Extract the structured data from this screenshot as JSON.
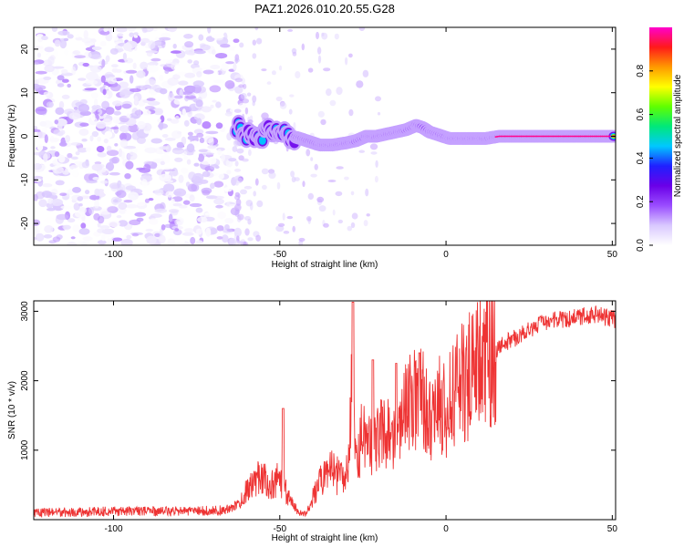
{
  "title": "PAZ1.2026.010.20.55.G28",
  "colors": {
    "snr_line": "#ee3333",
    "axis": "#000000",
    "colormap": [
      "#ffffff",
      "#d9c8ff",
      "#9a4dff",
      "#6a00e8",
      "#2020ff",
      "#00c8ff",
      "#00e87a",
      "#60ff00",
      "#ffff00",
      "#ff9900",
      "#ff1a1a",
      "#ff00cc"
    ]
  },
  "chart_data": [
    {
      "type": "heatmap",
      "title": "PAZ1.2026.010.20.55.G28",
      "xlabel": "Height of straight line (km)",
      "ylabel": "Frequency (Hz)",
      "xlim": [
        -124,
        51
      ],
      "ylim": [
        -25,
        25
      ],
      "xticks": [
        -100,
        -50,
        0,
        50
      ],
      "yticks": [
        -20,
        -10,
        0,
        10,
        20
      ],
      "xtick_labels": [
        "-100",
        "-50",
        "0",
        "50"
      ],
      "ytick_labels": [
        "-20",
        "-10",
        "0",
        "10",
        "20"
      ],
      "ridge": {
        "description": "dominant frequency track",
        "x": [
          -63,
          -60,
          -57,
          -54,
          -50,
          -46,
          -42,
          -38,
          -34,
          -30,
          -27,
          -24,
          -21,
          -18,
          -15,
          -12,
          -9,
          -7,
          -5,
          -3,
          -1,
          1,
          4,
          8,
          12,
          16,
          20,
          30,
          40,
          51
        ],
        "y": [
          2.5,
          0.5,
          -0.5,
          1.0,
          0.5,
          0.0,
          -1.0,
          -2.0,
          -2.0,
          -1.5,
          -1.0,
          0.0,
          0.0,
          0.5,
          1.0,
          1.5,
          2.5,
          2.0,
          1.0,
          0.5,
          0.0,
          -0.5,
          -0.5,
          -0.5,
          -0.5,
          0.0,
          0.0,
          0.0,
          0.0,
          0.0
        ]
      },
      "noise_region": {
        "x_range": [
          -124,
          -63
        ],
        "y_range": [
          -25,
          25
        ],
        "amplitude_range": [
          0.0,
          0.15
        ]
      }
    },
    {
      "type": "colorbar",
      "label": "Normalized spectral amplitude",
      "range": [
        0.0,
        1.0
      ],
      "ticks": [
        0.0,
        0.2,
        0.4,
        0.6,
        0.8
      ],
      "tick_labels": [
        "0.0",
        "0.2",
        "0.4",
        "0.6",
        "0.8"
      ]
    },
    {
      "type": "line",
      "xlabel": "Height of straight line (km)",
      "ylabel": "SNR (10 * v/v)",
      "xlim": [
        -124,
        51
      ],
      "ylim": [
        0,
        3150
      ],
      "xticks": [
        -100,
        -50,
        0,
        50
      ],
      "yticks": [
        1000,
        2000,
        3000
      ],
      "xtick_labels": [
        "-100",
        "-50",
        "0",
        "50"
      ],
      "ytick_labels": [
        "1000",
        "2000",
        "3000"
      ],
      "series": [
        {
          "name": "SNR",
          "x": [
            -124,
            -110,
            -100,
            -90,
            -80,
            -70,
            -65,
            -62,
            -59,
            -56,
            -53,
            -50,
            -48,
            -46,
            -44,
            -42,
            -40,
            -37,
            -34,
            -31,
            -29,
            -28,
            -27,
            -25,
            -22,
            -19,
            -16,
            -13,
            -10,
            -7,
            -5,
            -3,
            0,
            3,
            6,
            9,
            12,
            15,
            18,
            22,
            26,
            30,
            35,
            40,
            45,
            51
          ],
          "y": [
            100,
            110,
            120,
            115,
            120,
            130,
            150,
            250,
            500,
            650,
            500,
            600,
            400,
            200,
            100,
            80,
            350,
            600,
            700,
            550,
            1100,
            2200,
            800,
            1300,
            950,
            1450,
            1100,
            1500,
            1700,
            1800,
            1400,
            1700,
            1550,
            1900,
            2000,
            2200,
            2350,
            2450,
            2550,
            2650,
            2750,
            2850,
            2880,
            2920,
            2950,
            2880
          ],
          "peaks": [
            {
              "x": -49,
              "y": 1600
            },
            {
              "x": -28,
              "y": 3130
            },
            {
              "x": -22,
              "y": 2300
            },
            {
              "x": -15,
              "y": 2250
            },
            {
              "x": -8,
              "y": 2400
            }
          ]
        }
      ]
    }
  ]
}
